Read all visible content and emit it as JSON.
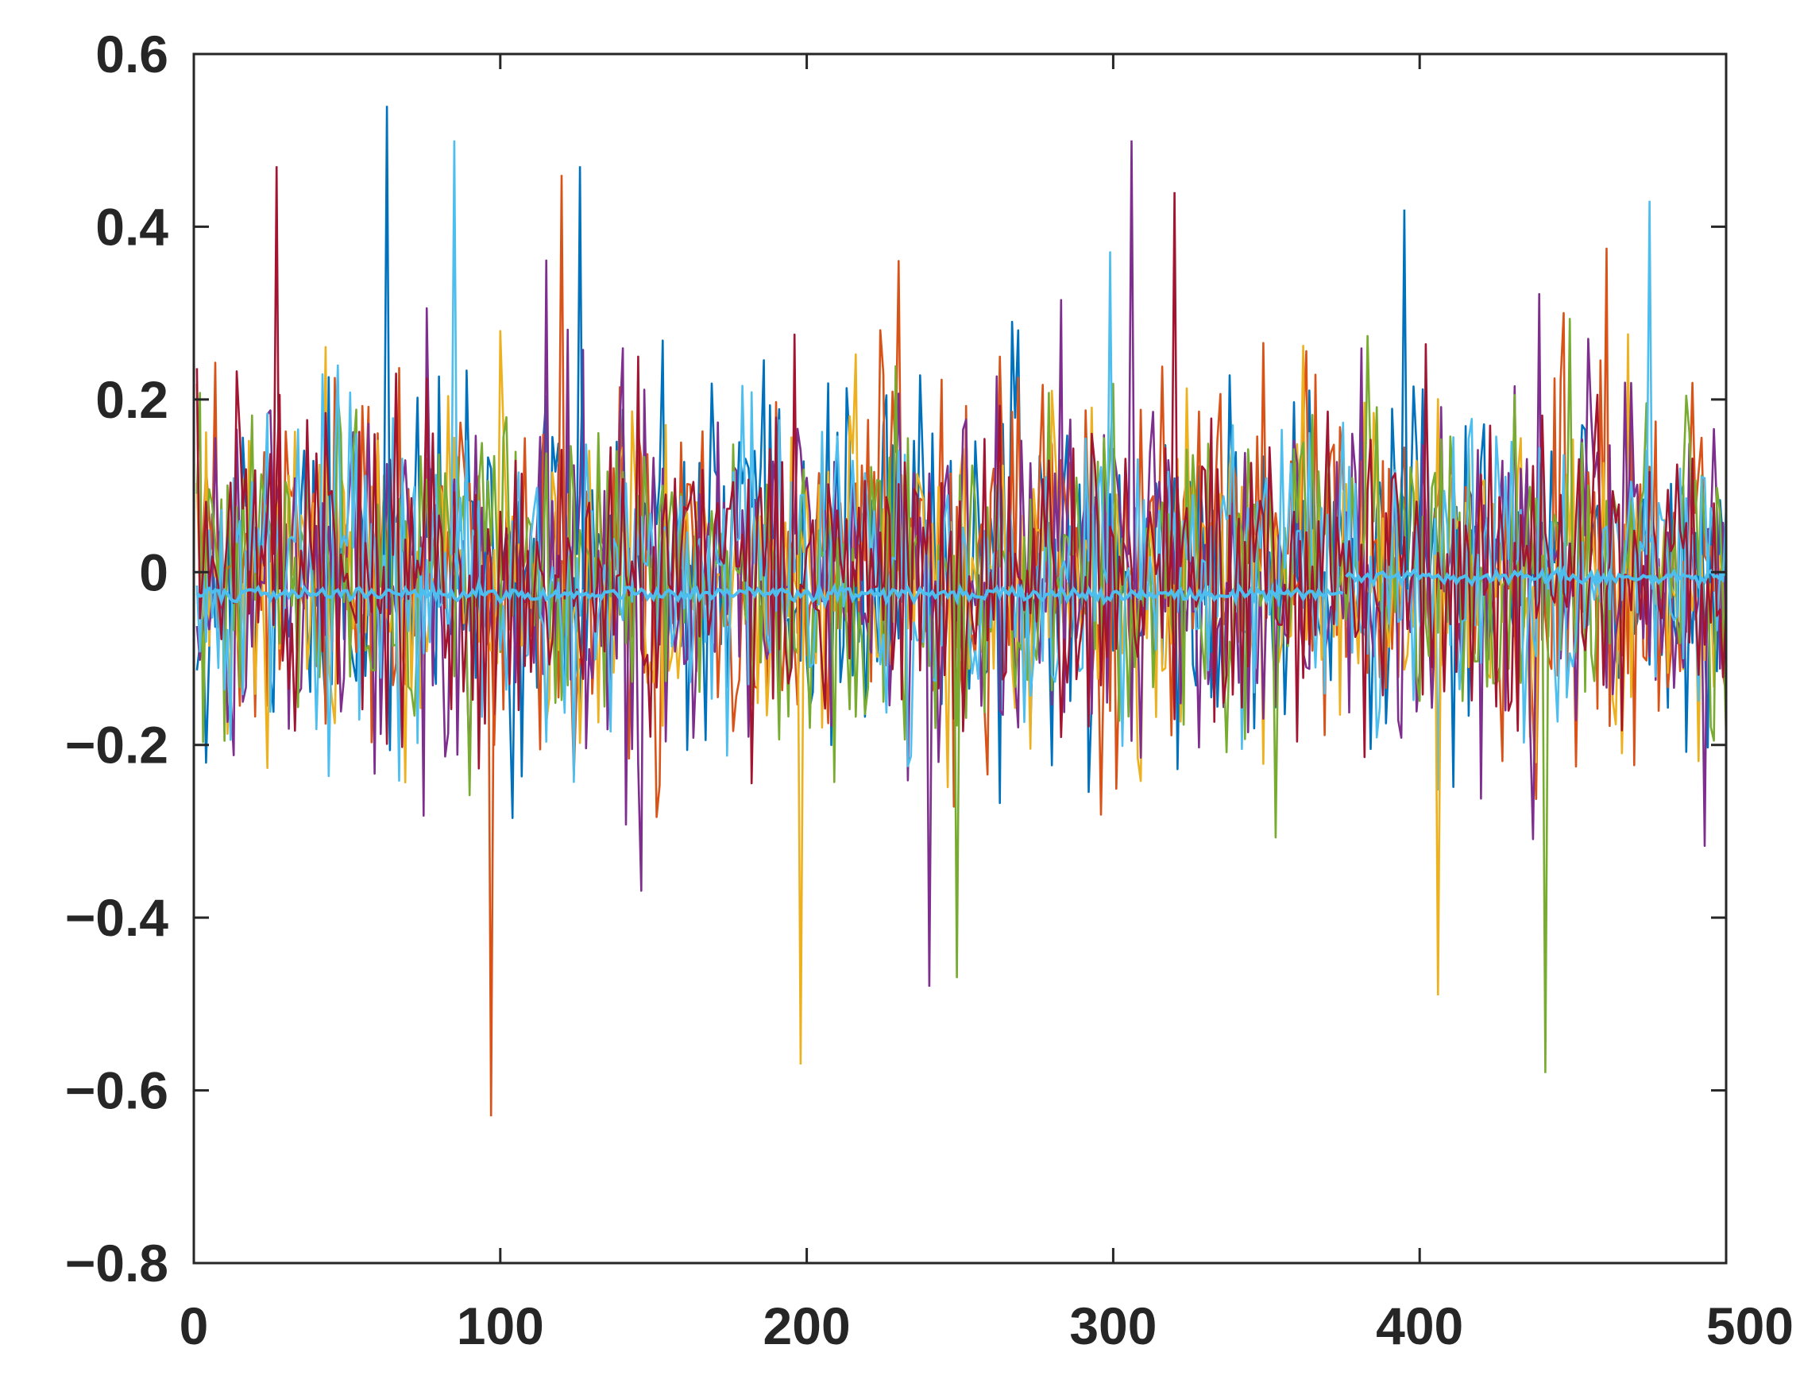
{
  "chart_data": {
    "type": "line",
    "title": "",
    "xlabel": "",
    "ylabel": "",
    "xlim": [
      0,
      500
    ],
    "ylim": [
      -0.8,
      0.6
    ],
    "xticks": [
      0,
      100,
      200,
      300,
      400,
      500
    ],
    "yticks": [
      -0.8,
      -0.6,
      -0.4,
      -0.2,
      0,
      0.2,
      0.4,
      0.6
    ],
    "xtick_labels": [
      "0",
      "100",
      "200",
      "300",
      "400",
      "500"
    ],
    "ytick_labels": [
      "−0.8",
      "−0.6",
      "−0.4",
      "−0.2",
      "0",
      "0.2",
      "0.4",
      "0.6"
    ],
    "grid": false,
    "legend": "none",
    "n_points": 500,
    "noise_series": [
      {
        "color": "#0072BD",
        "std": 0.1,
        "seed": 11
      },
      {
        "color": "#D95319",
        "std": 0.11,
        "seed": 23
      },
      {
        "color": "#EDB120",
        "std": 0.09,
        "seed": 37
      },
      {
        "color": "#7E2F8E",
        "std": 0.11,
        "seed": 41
      },
      {
        "color": "#77AC30",
        "std": 0.09,
        "seed": 53
      },
      {
        "color": "#4DBEEE",
        "std": 0.09,
        "seed": 67
      },
      {
        "color": "#A2142F",
        "std": 0.09,
        "seed": 79
      }
    ],
    "mean_series": {
      "color": "#4DBEEE",
      "segments": [
        {
          "x_start": 1,
          "x_end": 375,
          "level": -0.025
        },
        {
          "x_start": 376,
          "x_end": 500,
          "level": -0.005
        }
      ]
    },
    "extremes": [
      {
        "x": 63,
        "y": 0.54
      },
      {
        "x": 97,
        "y": -0.63
      },
      {
        "x": 198,
        "y": -0.57
      },
      {
        "x": 306,
        "y": 0.5
      },
      {
        "x": 441,
        "y": -0.58
      },
      {
        "x": 85,
        "y": 0.5
      },
      {
        "x": 27,
        "y": 0.47
      },
      {
        "x": 126,
        "y": 0.47
      },
      {
        "x": 120,
        "y": 0.46
      },
      {
        "x": 406,
        "y": -0.49
      },
      {
        "x": 240,
        "y": -0.48
      },
      {
        "x": 249,
        "y": -0.47
      },
      {
        "x": 475,
        "y": 0.43
      },
      {
        "x": 320,
        "y": 0.44
      },
      {
        "x": 395,
        "y": 0.42
      }
    ]
  }
}
